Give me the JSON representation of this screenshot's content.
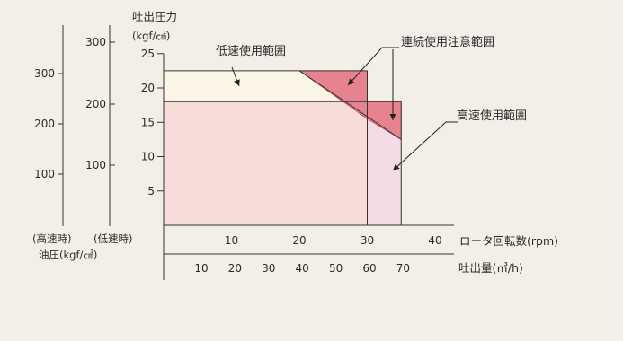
{
  "chart_data": {
    "type": "area",
    "y_title_line1": "吐出圧力",
    "y_title_line2": "(kgf/㎠)",
    "y_ticks": [
      "5",
      "10",
      "15",
      "20",
      "25"
    ],
    "ylim": [
      0,
      27
    ],
    "x_axis_rpm": {
      "label": "ロータ回転数(rpm)",
      "ticks": [
        "10",
        "20",
        "30",
        "40"
      ],
      "range": [
        0,
        40
      ]
    },
    "x_axis_flow": {
      "label": "吐出量(㎥/h)",
      "ticks": [
        "10",
        "20",
        "30",
        "40",
        "50",
        "60",
        "70"
      ]
    },
    "oil_axis_high": {
      "label": "(高速時)",
      "ticks": [
        "100",
        "200",
        "300"
      ]
    },
    "oil_axis_low": {
      "label": "(低速時)",
      "ticks": [
        "100",
        "200",
        "300"
      ]
    },
    "oil_axis_caption": "油圧(kgf/㎠)",
    "regions": [
      {
        "name": "低速使用範囲",
        "rpm": [
          0,
          30
        ],
        "pressure": [
          0,
          22.5
        ],
        "color": "#fbf6e6"
      },
      {
        "name": "高速使用範囲",
        "rpm": [
          0,
          35
        ],
        "pressure": [
          0,
          18
        ],
        "color": "#f7ddd9"
      },
      {
        "name": "連続使用注意範囲",
        "color": "#e7828f",
        "polygons": [
          [
            [
              20,
              22.5
            ],
            [
              30,
              22.5
            ],
            [
              30,
              15.5
            ]
          ],
          [
            [
              30,
              18
            ],
            [
              35,
              18
            ],
            [
              35,
              12.5
            ],
            [
              30,
              15.5
            ]
          ]
        ]
      }
    ],
    "grid": false,
    "colors": {
      "accent": "#e7828f",
      "light_pink": "#f2dbe5",
      "frame": "#f2efe9"
    }
  }
}
